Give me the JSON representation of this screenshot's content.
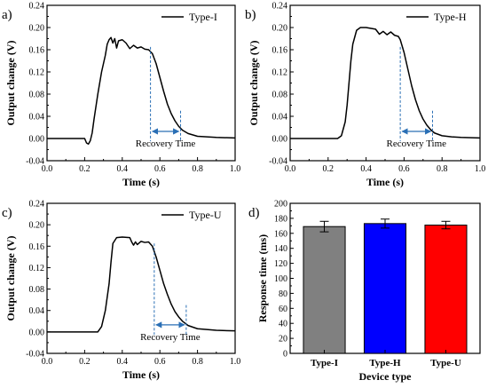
{
  "chart_data": [
    {
      "panel_label": "a)",
      "type": "line",
      "xlabel": "Time (s)",
      "ylabel": "Output change (V)",
      "xlim": [
        0.0,
        1.0
      ],
      "ylim": [
        -0.04,
        0.24
      ],
      "xticks": [
        "0.0",
        "0.2",
        "0.4",
        "0.6",
        "0.8",
        "1.0"
      ],
      "yticks": [
        "-0.04",
        "0.00",
        "0.04",
        "0.08",
        "0.12",
        "0.16",
        "0.20",
        "0.24"
      ],
      "legend": "top-right",
      "series": [
        {
          "name": "Type-I",
          "color": "#000000",
          "x": [
            0.0,
            0.2,
            0.21,
            0.22,
            0.23,
            0.24,
            0.25,
            0.27,
            0.29,
            0.31,
            0.32,
            0.33,
            0.34,
            0.35,
            0.36,
            0.37,
            0.38,
            0.4,
            0.42,
            0.44,
            0.46,
            0.48,
            0.5,
            0.52,
            0.54,
            0.56,
            0.58,
            0.6,
            0.62,
            0.64,
            0.66,
            0.68,
            0.7,
            0.72,
            0.75,
            0.8,
            0.9,
            1.0
          ],
          "y": [
            0.0,
            0.0,
            -0.008,
            -0.01,
            -0.004,
            0.01,
            0.035,
            0.08,
            0.12,
            0.15,
            0.17,
            0.178,
            0.182,
            0.172,
            0.18,
            0.163,
            0.176,
            0.178,
            0.172,
            0.162,
            0.168,
            0.163,
            0.165,
            0.161,
            0.16,
            0.153,
            0.135,
            0.11,
            0.085,
            0.062,
            0.045,
            0.032,
            0.022,
            0.015,
            0.009,
            0.004,
            0.002,
            0.001
          ]
        }
      ],
      "annotation": {
        "text": "Recovery Time",
        "start": 0.55,
        "end": 0.71
      }
    },
    {
      "panel_label": "b)",
      "type": "line",
      "xlabel": "Time (s)",
      "ylabel": "Output change (V)",
      "xlim": [
        0.0,
        1.0
      ],
      "ylim": [
        -0.04,
        0.24
      ],
      "xticks": [
        "0.0",
        "0.2",
        "0.4",
        "0.6",
        "0.8",
        "1.0"
      ],
      "yticks": [
        "-0.04",
        "0.00",
        "0.04",
        "0.08",
        "0.12",
        "0.16",
        "0.20",
        "0.24"
      ],
      "legend": "top-right",
      "series": [
        {
          "name": "Type-H",
          "color": "#000000",
          "x": [
            0.0,
            0.25,
            0.27,
            0.29,
            0.3,
            0.31,
            0.32,
            0.33,
            0.35,
            0.37,
            0.4,
            0.45,
            0.47,
            0.49,
            0.51,
            0.53,
            0.55,
            0.57,
            0.58,
            0.6,
            0.62,
            0.64,
            0.66,
            0.68,
            0.7,
            0.72,
            0.74,
            0.76,
            0.8,
            0.85,
            0.9,
            1.0
          ],
          "y": [
            0.0,
            0.0,
            0.005,
            0.03,
            0.06,
            0.1,
            0.14,
            0.17,
            0.195,
            0.2,
            0.2,
            0.197,
            0.188,
            0.193,
            0.187,
            0.192,
            0.186,
            0.184,
            0.178,
            0.155,
            0.125,
            0.095,
            0.07,
            0.05,
            0.035,
            0.024,
            0.016,
            0.01,
            0.005,
            0.003,
            0.002,
            0.001
          ]
        }
      ],
      "annotation": {
        "text": "Recovery Time",
        "start": 0.58,
        "end": 0.75
      }
    },
    {
      "panel_label": "c)",
      "type": "line",
      "xlabel": "Time (s)",
      "ylabel": "Output change (V)",
      "xlim": [
        0.0,
        1.0
      ],
      "ylim": [
        -0.04,
        0.24
      ],
      "xticks": [
        "0.0",
        "0.2",
        "0.4",
        "0.6",
        "0.8",
        "1.0"
      ],
      "yticks": [
        "-0.04",
        "0.00",
        "0.04",
        "0.08",
        "0.12",
        "0.16",
        "0.20",
        "0.24"
      ],
      "legend": "top-right",
      "series": [
        {
          "name": "Type-U",
          "color": "#000000",
          "x": [
            0.0,
            0.27,
            0.29,
            0.31,
            0.33,
            0.34,
            0.35,
            0.37,
            0.4,
            0.44,
            0.45,
            0.46,
            0.47,
            0.48,
            0.5,
            0.52,
            0.54,
            0.56,
            0.58,
            0.6,
            0.62,
            0.64,
            0.66,
            0.68,
            0.7,
            0.72,
            0.75,
            0.8,
            0.9,
            1.0
          ],
          "y": [
            0.0,
            0.0,
            0.01,
            0.04,
            0.09,
            0.13,
            0.165,
            0.176,
            0.177,
            0.176,
            0.168,
            0.162,
            0.168,
            0.163,
            0.169,
            0.167,
            0.168,
            0.16,
            0.14,
            0.115,
            0.09,
            0.07,
            0.052,
            0.038,
            0.028,
            0.02,
            0.012,
            0.006,
            0.003,
            0.002
          ]
        }
      ],
      "annotation": {
        "text": "Recovery Time",
        "start": 0.57,
        "end": 0.74
      }
    },
    {
      "panel_label": "d)",
      "type": "bar",
      "xlabel": "Device type",
      "ylabel": "Response time (ms)",
      "ylim": [
        0,
        200
      ],
      "yticks": [
        "0",
        "20",
        "40",
        "60",
        "80",
        "100",
        "120",
        "140",
        "160",
        "180",
        "200"
      ],
      "categories": [
        "Type-I",
        "Type-H",
        "Type-U"
      ],
      "values": [
        169,
        173,
        171
      ],
      "errors": [
        7,
        6,
        5
      ],
      "colors": [
        "#808080",
        "#0000ff",
        "#ff0000"
      ]
    }
  ]
}
